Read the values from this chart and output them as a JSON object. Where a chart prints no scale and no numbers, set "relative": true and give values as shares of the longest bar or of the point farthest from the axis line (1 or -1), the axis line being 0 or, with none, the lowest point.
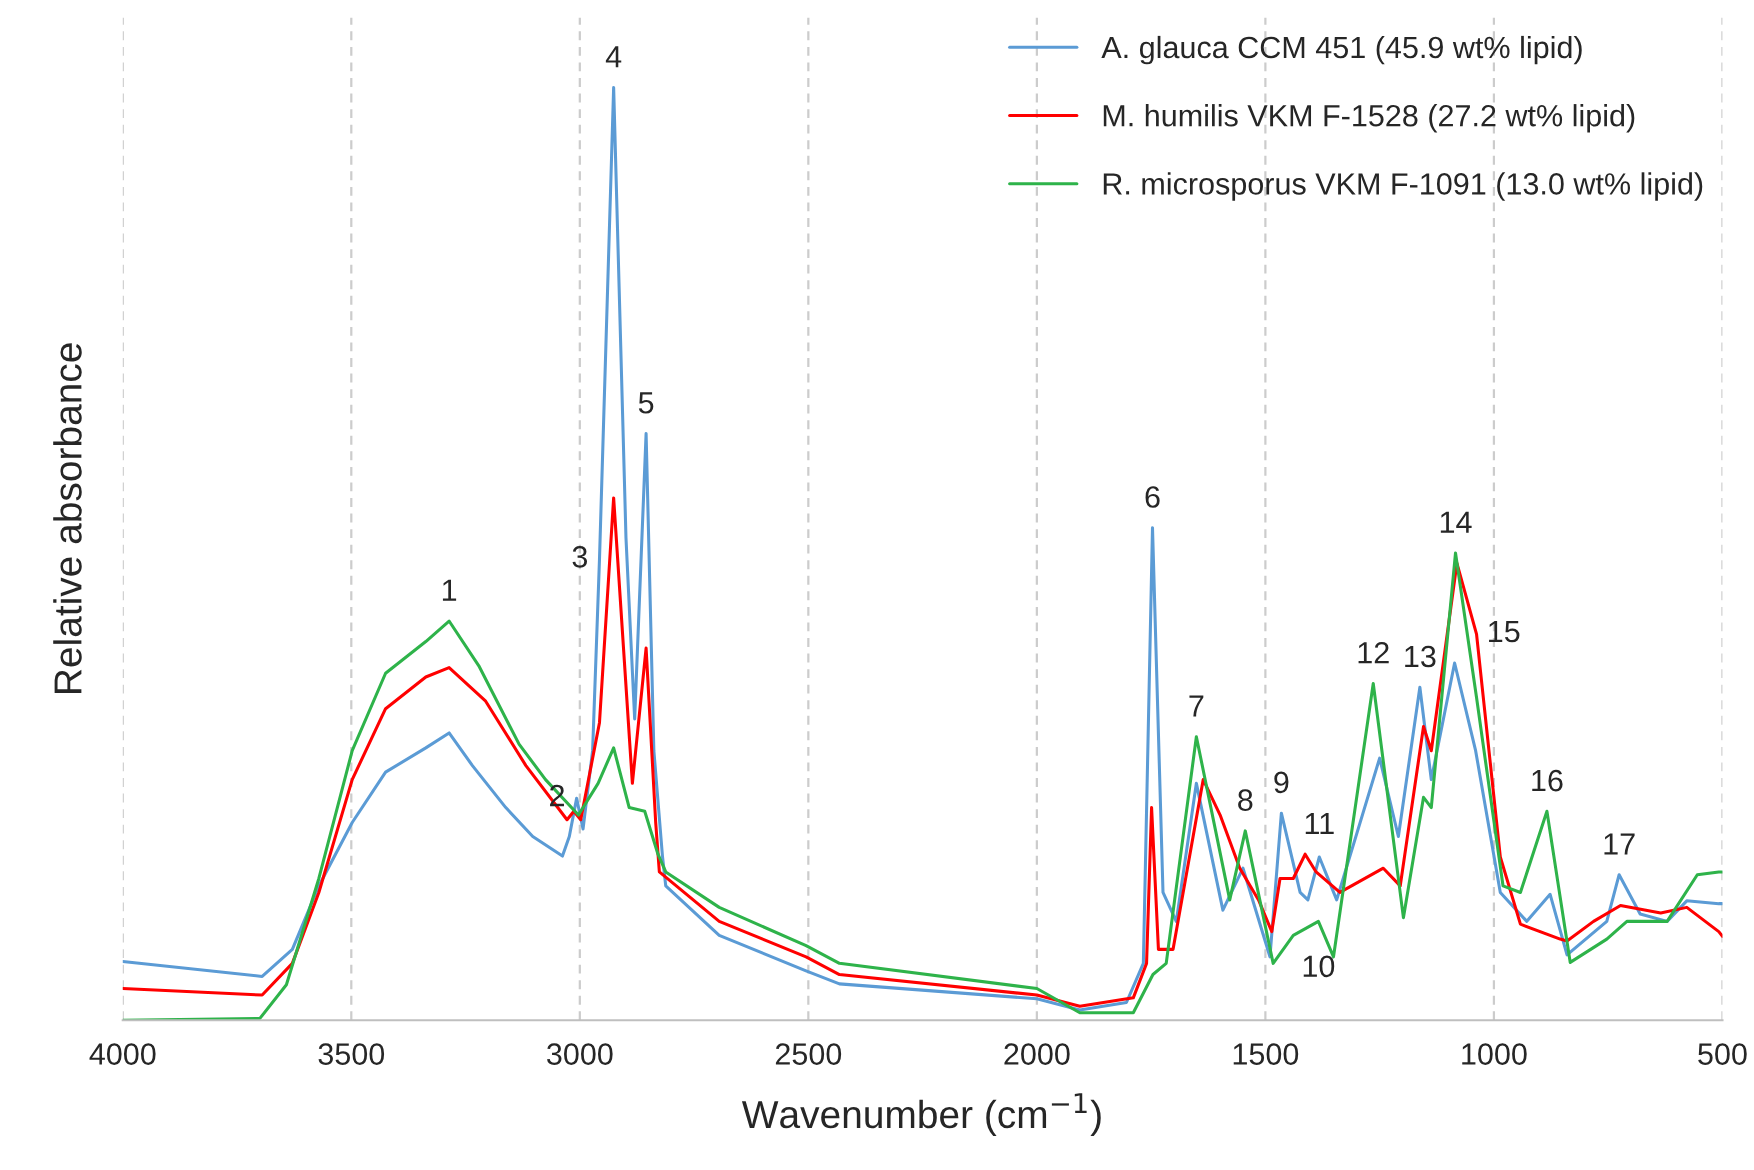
{
  "chart_data": {
    "type": "line",
    "relative": true,
    "xlabel": "Wavenumber (cm$^{−1}$)",
    "ylabel": "Relative absorbance",
    "xlim": [
      4000,
      500
    ],
    "xticks": [
      4000,
      3500,
      3000,
      2500,
      2000,
      1500,
      1000,
      500
    ],
    "grid": "x",
    "legend": "top right",
    "line_style": "solid",
    "series": [
      {
        "name": "A. glauca CCM 451 (45.9 wt% lipid)",
        "color": "#5b9bd5",
        "x": [
          4000,
          3695,
          3629,
          3571,
          3498,
          3425,
          3337,
          3286,
          3235,
          3162,
          3103,
          3038,
          3023,
          3007,
          2993,
          2972,
          2957,
          2926,
          2899,
          2880,
          2855,
          2838,
          2819,
          2812,
          2695,
          2505,
          2432,
          2000,
          1906,
          1804,
          1767,
          1747,
          1724,
          1695,
          1651,
          1593,
          1549,
          1490,
          1465,
          1424,
          1407,
          1382,
          1344,
          1250,
          1209,
          1162,
          1137,
          1086,
          1040,
          986,
          928,
          877,
          840,
          753,
          726,
          680,
          621,
          578,
          508,
          500
        ],
        "values": [
          0.063,
          0.047,
          0.076,
          0.144,
          0.212,
          0.266,
          0.292,
          0.308,
          0.273,
          0.228,
          0.197,
          0.176,
          0.197,
          0.238,
          0.205,
          0.289,
          0.494,
          1.0,
          0.517,
          0.323,
          0.629,
          0.289,
          0.175,
          0.144,
          0.091,
          0.053,
          0.039,
          0.023,
          0.011,
          0.019,
          0.061,
          0.528,
          0.137,
          0.106,
          0.254,
          0.118,
          0.163,
          0.068,
          0.222,
          0.137,
          0.129,
          0.175,
          0.129,
          0.281,
          0.197,
          0.357,
          0.258,
          0.383,
          0.289,
          0.137,
          0.106,
          0.135,
          0.07,
          0.106,
          0.156,
          0.114,
          0.106,
          0.128,
          0.125,
          0.125
        ]
      },
      {
        "name": "M. humilis VKM F-1528 (27.2 wt% lipid)",
        "color": "#ff0000",
        "x": [
          4000,
          3695,
          3629,
          3571,
          3498,
          3425,
          3337,
          3286,
          3206,
          3118,
          3028,
          3013,
          2998,
          2957,
          2926,
          2885,
          2855,
          2834,
          2826,
          2695,
          2505,
          2432,
          2000,
          1906,
          1789,
          1760,
          1749,
          1734,
          1702,
          1636,
          1599,
          1556,
          1515,
          1486,
          1468,
          1439,
          1413,
          1389,
          1337,
          1242,
          1205,
          1154,
          1137,
          1081,
          1038,
          986,
          942,
          855,
          840,
          782,
          723,
          635,
          578,
          508,
          500
        ],
        "values": [
          0.034,
          0.027,
          0.061,
          0.137,
          0.258,
          0.334,
          0.368,
          0.378,
          0.342,
          0.273,
          0.215,
          0.224,
          0.215,
          0.319,
          0.56,
          0.254,
          0.399,
          0.212,
          0.159,
          0.106,
          0.068,
          0.049,
          0.027,
          0.015,
          0.024,
          0.061,
          0.228,
          0.076,
          0.076,
          0.258,
          0.22,
          0.163,
          0.129,
          0.095,
          0.152,
          0.152,
          0.178,
          0.159,
          0.137,
          0.163,
          0.144,
          0.315,
          0.289,
          0.49,
          0.414,
          0.175,
          0.103,
          0.087,
          0.085,
          0.106,
          0.123,
          0.115,
          0.121,
          0.095,
          0.09
        ]
      },
      {
        "name": "R. microsporus VKM F-1091 (13.0 wt% lipid)",
        "color": "#2eb34a",
        "x": [
          4000,
          3700,
          3642,
          3571,
          3498,
          3425,
          3337,
          3286,
          3221,
          3133,
          3075,
          3003,
          2960,
          2926,
          2892,
          2858,
          2829,
          2812,
          2695,
          2505,
          2432,
          2000,
          1906,
          1789,
          1746,
          1717,
          1651,
          1578,
          1544,
          1483,
          1439,
          1384,
          1351,
          1264,
          1198,
          1154,
          1137,
          1084,
          1038,
          980,
          942,
          884,
          833,
          753,
          709,
          621,
          555,
          508,
          500
        ],
        "values": [
          0.0,
          0.002,
          0.038,
          0.152,
          0.289,
          0.372,
          0.406,
          0.428,
          0.38,
          0.296,
          0.258,
          0.22,
          0.254,
          0.292,
          0.228,
          0.224,
          0.178,
          0.159,
          0.121,
          0.08,
          0.061,
          0.034,
          0.008,
          0.008,
          0.049,
          0.061,
          0.304,
          0.129,
          0.203,
          0.061,
          0.091,
          0.106,
          0.068,
          0.361,
          0.11,
          0.239,
          0.228,
          0.501,
          0.346,
          0.144,
          0.137,
          0.224,
          0.062,
          0.087,
          0.106,
          0.106,
          0.156,
          0.159,
          0.159
        ]
      }
    ],
    "annotations": [
      {
        "text": "1",
        "x": 3286,
        "y": 0.428
      },
      {
        "text": "2",
        "x": 3007,
        "y": 0.238
      },
      {
        "text": "3",
        "x": 2957,
        "y": 0.494
      },
      {
        "text": "4",
        "x": 2926,
        "y": 1.0
      },
      {
        "text": "5",
        "x": 2855,
        "y": 0.629
      },
      {
        "text": "6",
        "x": 1747,
        "y": 0.528
      },
      {
        "text": "7",
        "x": 1651,
        "y": 0.304
      },
      {
        "text": "8",
        "x": 1544,
        "y": 0.203
      },
      {
        "text": "9",
        "x": 1465,
        "y": 0.222
      },
      {
        "text": "10",
        "x": 1384,
        "y": 0.106
      },
      {
        "text": "11",
        "x": 1382,
        "y": 0.178
      },
      {
        "text": "12",
        "x": 1264,
        "y": 0.361
      },
      {
        "text": "13",
        "x": 1162,
        "y": 0.357
      },
      {
        "text": "14",
        "x": 1084,
        "y": 0.501
      },
      {
        "text": "15",
        "x": 1040,
        "y": 0.414
      },
      {
        "text": "16",
        "x": 884,
        "y": 0.224
      },
      {
        "text": "17",
        "x": 726,
        "y": 0.156
      }
    ]
  }
}
